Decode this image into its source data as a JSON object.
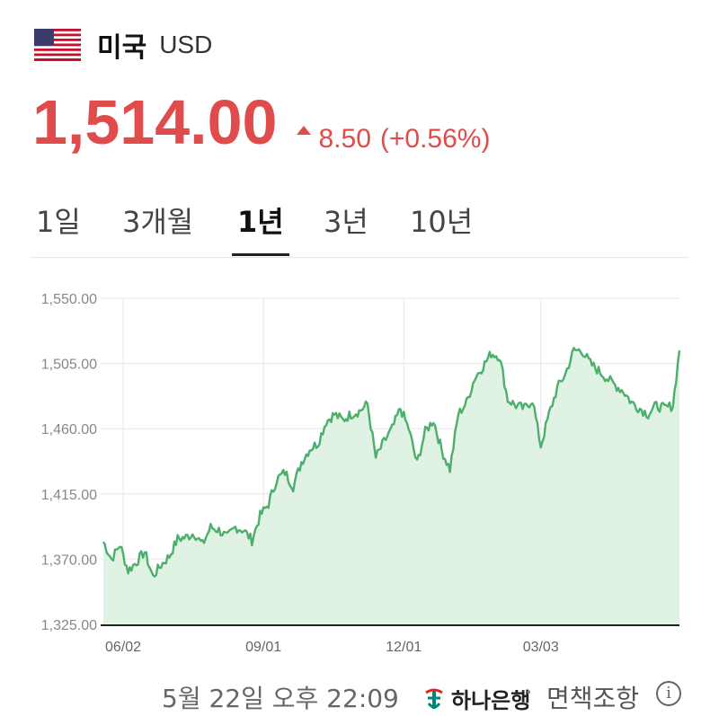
{
  "header": {
    "country": "미국",
    "currency": "USD"
  },
  "quote": {
    "price": "1,514.00",
    "change": "8.50",
    "change_pct": "(+0.56%)",
    "direction": "up",
    "color": "#e04b4b"
  },
  "tabs": [
    {
      "label": "1일",
      "active": false
    },
    {
      "label": "3개월",
      "active": false
    },
    {
      "label": "1년",
      "active": true
    },
    {
      "label": "3년",
      "active": false
    },
    {
      "label": "10년",
      "active": false
    }
  ],
  "footer": {
    "timestamp": "5월 22일 오후 22:09",
    "bank": "하나은행",
    "separator": "·",
    "disclaimer": "면책조항",
    "info_icon": "info-icon"
  },
  "chart_data": {
    "type": "area",
    "line_color": "#4caf6a",
    "fill_color": "#dff2e4",
    "ylim": [
      1325,
      1550
    ],
    "yticks": [
      "1,550.00",
      "1,505.00",
      "1,460.00",
      "1,415.00",
      "1,370.00",
      "1,325.00"
    ],
    "ytick_values": [
      1550,
      1505,
      1460,
      1415,
      1370,
      1325
    ],
    "xticks": [
      "06/02",
      "09/01",
      "12/01",
      "03/03"
    ],
    "xtick_positions": [
      12,
      97,
      182,
      265
    ],
    "x_count": 350,
    "grid": true,
    "series": [
      {
        "x": [
          0,
          5,
          10,
          15,
          20,
          25,
          30,
          35,
          40,
          45,
          50,
          55,
          60,
          65,
          70,
          75,
          80,
          85,
          90,
          95,
          100,
          105,
          110,
          115,
          120,
          125,
          130,
          135,
          140,
          145,
          150,
          155,
          160,
          165,
          170,
          175,
          180,
          185,
          190,
          195,
          200,
          205,
          210,
          215,
          220,
          225,
          230,
          235,
          240,
          245,
          250,
          255,
          260,
          265,
          270,
          275,
          280,
          285,
          290,
          295,
          300,
          305,
          310,
          315,
          320,
          325,
          330,
          335,
          340,
          345,
          349
        ],
        "y": [
          1382,
          1370,
          1380,
          1362,
          1368,
          1375,
          1358,
          1366,
          1372,
          1384,
          1385,
          1388,
          1380,
          1392,
          1390,
          1385,
          1392,
          1390,
          1383,
          1400,
          1408,
          1425,
          1430,
          1420,
          1437,
          1446,
          1450,
          1465,
          1470,
          1466,
          1470,
          1472,
          1477,
          1440,
          1451,
          1460,
          1474,
          1460,
          1436,
          1458,
          1466,
          1445,
          1432,
          1470,
          1478,
          1495,
          1503,
          1512,
          1510,
          1480,
          1476,
          1474,
          1480,
          1448,
          1470,
          1488,
          1498,
          1514,
          1514,
          1505,
          1500,
          1495,
          1490,
          1486,
          1478,
          1474,
          1470,
          1476,
          1474,
          1476,
          1514
        ]
      }
    ]
  }
}
